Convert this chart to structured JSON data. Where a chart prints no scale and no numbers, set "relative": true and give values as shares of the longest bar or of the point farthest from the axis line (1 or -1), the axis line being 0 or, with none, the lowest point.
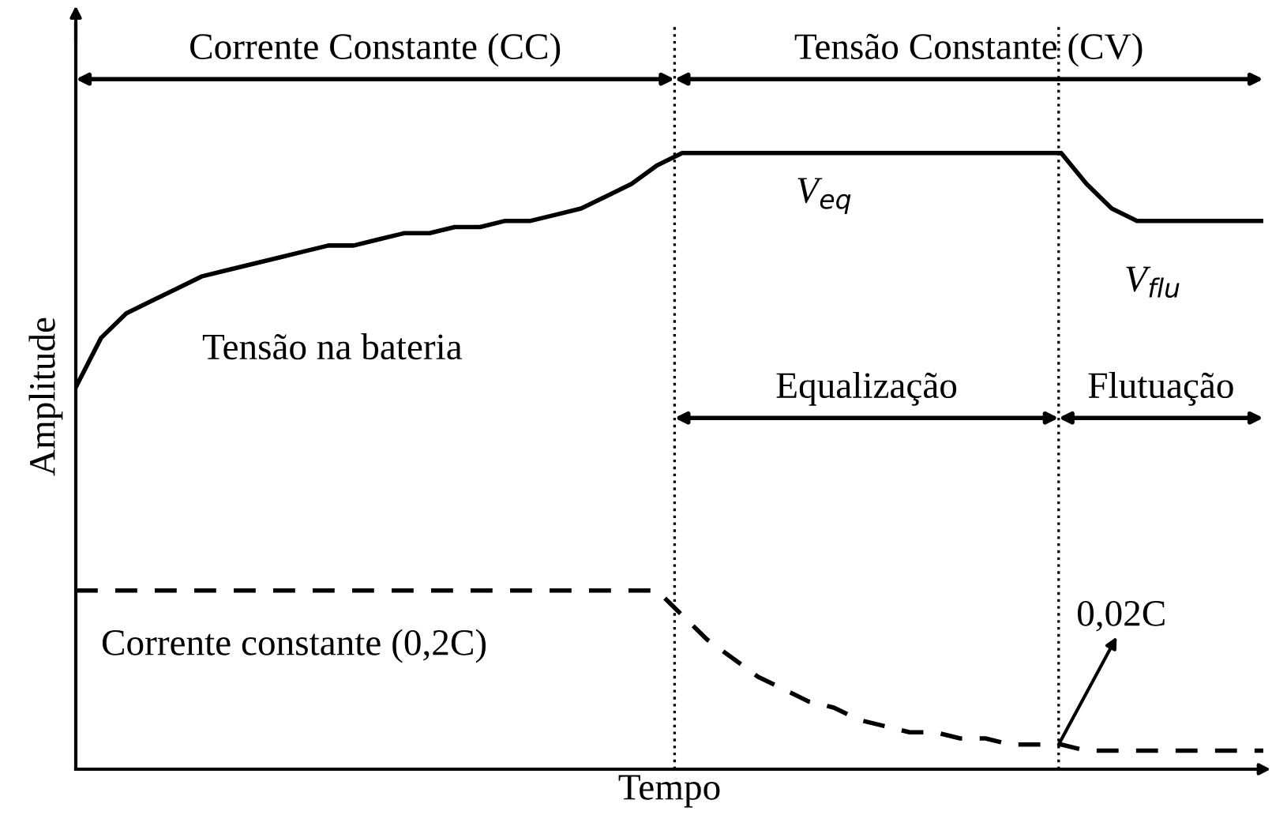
{
  "chart_data": {
    "type": "line",
    "relative": true,
    "xlabel": "Tempo",
    "ylabel": "Amplitude",
    "marker": "none",
    "categories": [
      null,
      null,
      null,
      null,
      null,
      null,
      null,
      null,
      null,
      null,
      null,
      null,
      null,
      null,
      null,
      null,
      null,
      null,
      null,
      null,
      null,
      null,
      null,
      null,
      null,
      null,
      null,
      null,
      null,
      null,
      null,
      null,
      null,
      null,
      null,
      null,
      null,
      null,
      null,
      null,
      null,
      null,
      null,
      null,
      null,
      null,
      null,
      null
    ],
    "series": [
      {
        "color": "#000000",
        "line_style": "solid",
        "values": [
          0.62,
          0.7,
          0.74,
          0.76,
          0.78,
          0.8,
          0.81,
          0.82,
          0.83,
          0.84,
          0.85,
          0.85,
          0.86,
          0.87,
          0.87,
          0.88,
          0.88,
          0.89,
          0.89,
          0.9,
          0.91,
          0.93,
          0.95,
          0.98,
          1,
          1,
          1,
          1,
          1,
          1,
          1,
          1,
          1,
          1,
          1,
          1,
          1,
          1,
          1,
          1,
          0.95,
          0.91,
          0.89,
          0.89,
          0.89,
          0.89,
          0.89,
          0.89
        ]
      },
      {
        "color": "#000000",
        "line_style": "dashed",
        "values": [
          0.29,
          0.29,
          0.29,
          0.29,
          0.29,
          0.29,
          0.29,
          0.29,
          0.29,
          0.29,
          0.29,
          0.29,
          0.29,
          0.29,
          0.29,
          0.29,
          0.29,
          0.29,
          0.29,
          0.29,
          0.29,
          0.29,
          0.29,
          0.29,
          0.25,
          0.21,
          0.18,
          0.15,
          0.13,
          0.11,
          0.1,
          0.08,
          0.07,
          0.06,
          0.06,
          0.05,
          0.05,
          0.04,
          0.04,
          0.04,
          0.03,
          0.03,
          0.03,
          0.03,
          0.03,
          0.03,
          0.03,
          0.03
        ]
      }
    ],
    "annotations": [
      "Tensão na bateria",
      "Corrente constante (0,2C)",
      "V$_{eq}$",
      "V$_{flu}$",
      "0,02C",
      "Corrente Constante (CC)",
      "Tensão Constante (CV)",
      "Equalização",
      "Flutuação"
    ]
  }
}
